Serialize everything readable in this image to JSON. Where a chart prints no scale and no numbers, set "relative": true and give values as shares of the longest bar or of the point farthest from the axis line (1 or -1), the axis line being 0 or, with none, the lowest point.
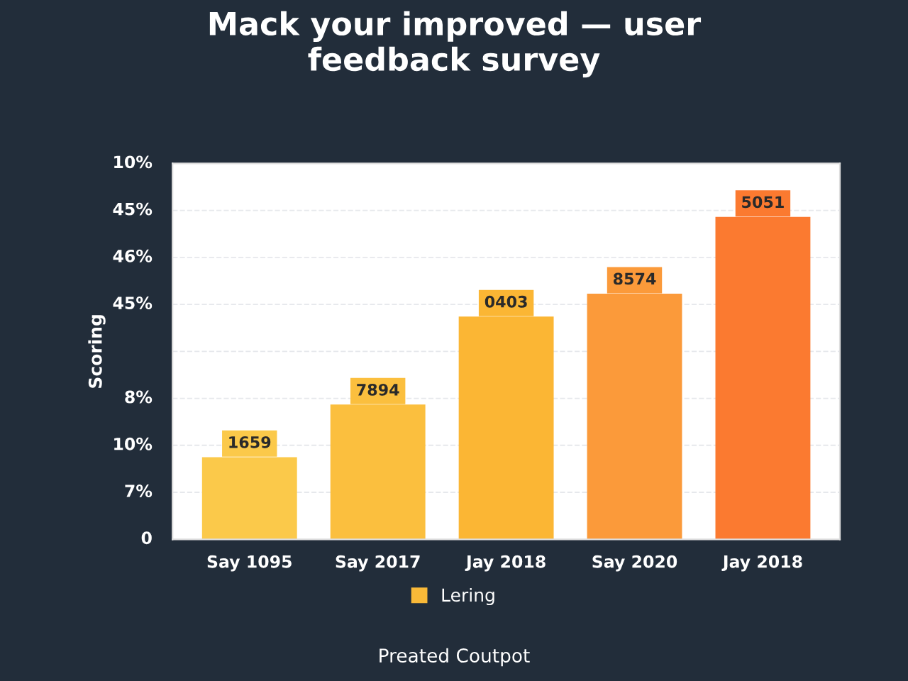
{
  "chart_data": {
    "type": "bar",
    "title": "Mack your improved — user\nfeedback survey",
    "xlabel": "Preated Coutpot",
    "ylabel": "Scoring",
    "categories": [
      "Say 1095",
      "Say 2017",
      "Jay 2018",
      "Say 2020",
      "Jay 2018"
    ],
    "relative": true,
    "series": [
      {
        "name": "Lering",
        "color": "#f9b938",
        "colors": [
          "#fbc94a",
          "#fbbf3e",
          "#fbb634",
          "#fb9a3a",
          "#fb7a30"
        ],
        "values": [
          0.255,
          0.418,
          0.691,
          0.762,
          1
        ]
      }
    ],
    "annotations": [
      "0",
      "7%",
      "10%",
      "8%",
      null,
      "45%",
      "46%",
      "45%",
      "10%",
      {
        "text": "1659",
        "y": 0.255
      },
      {
        "text": "7894",
        "y": 0.418
      },
      {
        "text": "0403",
        "y": 0.691
      },
      {
        "text": "8574",
        "y": 0.762
      },
      {
        "text": "5051",
        "y": 1
      }
    ],
    "grid": "y",
    "legend": "bottom"
  }
}
